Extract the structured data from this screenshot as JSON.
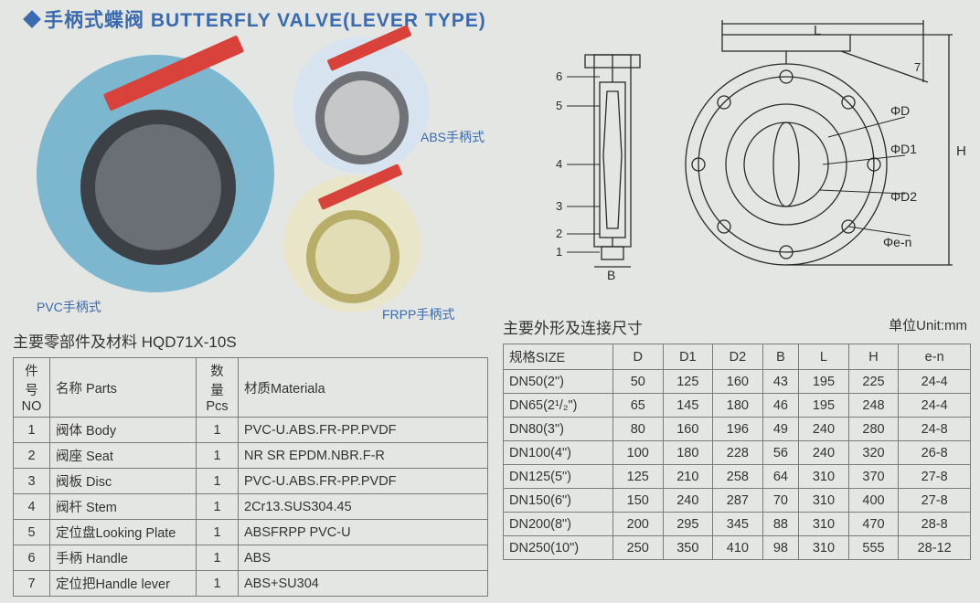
{
  "title": "手柄式蝶阀 BUTTERFLY VALVE(LEVER TYPE)",
  "products": {
    "pvc": {
      "label": "PVC手柄式",
      "circle_color": "#7cb6cf",
      "body_color": "#4a4f55",
      "face_color": "#6a6f75"
    },
    "abs": {
      "label": "ABS手柄式",
      "circle_color": "#d8e3f0",
      "body_color": "#8f9396",
      "face_color": "#c5c7c9"
    },
    "frpp": {
      "label": "FRPP手柄式",
      "circle_color": "#e9e5c9",
      "body_color": "#d7cf93",
      "face_color": "#e3ddb6"
    }
  },
  "lever_color": "#d9423a",
  "eng_labels": [
    "1",
    "2",
    "3",
    "4",
    "5",
    "6",
    "7",
    "ΦD",
    "ΦD1",
    "ΦD2",
    "Φe-n",
    "L",
    "H",
    "B"
  ],
  "parts": {
    "heading": "主要零部件及材料 HQD71X-10S",
    "columns": [
      "件 号\nNO",
      "名称  Parts",
      "数 量\nPcs",
      "材质Materiala"
    ],
    "rows": [
      [
        "1",
        "阀体  Body",
        "1",
        "PVC-U.ABS.FR-PP.PVDF"
      ],
      [
        "2",
        "阀座  Seat",
        "1",
        "NR SR EPDM.NBR.F-R"
      ],
      [
        "3",
        "阀板  Disc",
        "1",
        "PVC-U.ABS.FR-PP.PVDF"
      ],
      [
        "4",
        "阀杆  Stem",
        "1",
        "2Cr13.SUS304.45"
      ],
      [
        "5",
        "定位盘Looking Plate",
        "1",
        "ABSFRPP  PVC-U"
      ],
      [
        "6",
        "手柄  Handle",
        "1",
        "ABS"
      ],
      [
        "7",
        "定位把Handle lever",
        "1",
        "ABS+SU304"
      ]
    ]
  },
  "dims": {
    "heading": "主要外形及连接尺寸",
    "unit": "单位Unit:mm",
    "columns": [
      "规格SIZE",
      "D",
      "D1",
      "D2",
      "B",
      "L",
      "H",
      "e-n"
    ],
    "rows": [
      [
        "DN50(2\")",
        "50",
        "125",
        "160",
        "43",
        "195",
        "225",
        "24-4"
      ],
      [
        "DN65(2¹/₂\")",
        "65",
        "145",
        "180",
        "46",
        "195",
        "248",
        "24-4"
      ],
      [
        "DN80(3\")",
        "80",
        "160",
        "196",
        "49",
        "240",
        "280",
        "24-8"
      ],
      [
        "DN100(4\")",
        "100",
        "180",
        "228",
        "56",
        "240",
        "320",
        "26-8"
      ],
      [
        "DN125(5\")",
        "125",
        "210",
        "258",
        "64",
        "310",
        "370",
        "27-8"
      ],
      [
        "DN150(6\")",
        "150",
        "240",
        "287",
        "70",
        "310",
        "400",
        "27-8"
      ],
      [
        "DN200(8\")",
        "200",
        "295",
        "345",
        "88",
        "310",
        "470",
        "28-8"
      ],
      [
        "DN250(10\")",
        "250",
        "350",
        "410",
        "98",
        "310",
        "555",
        "28-12"
      ]
    ]
  },
  "eng_stroke": "#2a2a2a"
}
